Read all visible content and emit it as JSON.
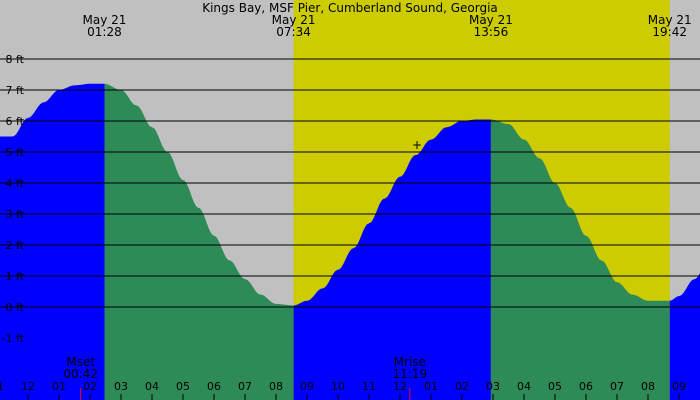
{
  "chart_data": {
    "type": "area",
    "title": "Kings Bay, MSF Pier, Cumberland Sound, Georgia",
    "xlabel": "",
    "ylabel": "",
    "y_unit": "ft",
    "ylim": [
      -1.7,
      9.0
    ],
    "y_ticks": [
      {
        "value": 8,
        "label": "8 ft"
      },
      {
        "value": 7,
        "label": "7 ft"
      },
      {
        "value": 6,
        "label": "6 ft"
      },
      {
        "value": 5,
        "label": "5 ft"
      },
      {
        "value": 4,
        "label": "4 ft"
      },
      {
        "value": 3,
        "label": "3 ft"
      },
      {
        "value": 2,
        "label": "2 ft"
      },
      {
        "value": 1,
        "label": "1 ft"
      },
      {
        "value": 0,
        "label": "0 ft"
      },
      {
        "value": -1,
        "label": "-1 ft"
      }
    ],
    "x_range_hours": [
      -1.45,
      21.15
    ],
    "grid": true,
    "daylight": {
      "sunrise": "07:34",
      "sunset": "19:42"
    },
    "extremes": [
      {
        "kind": "high",
        "date": "May 21",
        "time": "01:28",
        "height": 7.2
      },
      {
        "kind": "low",
        "date": "May 21",
        "time": "07:34",
        "height": 0.05
      },
      {
        "kind": "high",
        "date": "May 21",
        "time": "13:56",
        "height": 6.05
      },
      {
        "kind": "low",
        "date": "May 21",
        "time": "19:42",
        "height": 0.2
      }
    ],
    "top_labels": [
      {
        "date": "May 21",
        "time": "01:28"
      },
      {
        "date": "May 21",
        "time": "07:34"
      },
      {
        "date": "May 21",
        "time": "13:56"
      },
      {
        "date": "May 21",
        "time": "19:42"
      }
    ],
    "series": [
      {
        "x": [
          "-01:30",
          "-01:00",
          "-00:30",
          "00:00",
          "00:30",
          "01:00",
          "01:28",
          "02:00",
          "02:30",
          "03:00",
          "03:30",
          "04:00",
          "04:30",
          "05:00",
          "05:30",
          "06:00",
          "06:30",
          "07:00",
          "07:34",
          "08:00",
          "08:30",
          "09:00",
          "09:30",
          "10:00",
          "10:30",
          "11:00",
          "11:30",
          "12:00",
          "12:30",
          "13:00",
          "13:30",
          "13:56",
          "14:30",
          "15:00",
          "15:30",
          "16:00",
          "16:30",
          "17:00",
          "17:30",
          "18:00",
          "18:30",
          "19:00",
          "19:42",
          "20:00",
          "20:30",
          "21:00"
        ],
        "values": [
          5.5,
          6.1,
          6.6,
          7.0,
          7.15,
          7.2,
          7.2,
          7.0,
          6.5,
          5.8,
          5.0,
          4.1,
          3.2,
          2.3,
          1.5,
          0.9,
          0.4,
          0.1,
          0.05,
          0.2,
          0.6,
          1.2,
          1.9,
          2.7,
          3.5,
          4.2,
          4.9,
          5.4,
          5.8,
          6.0,
          6.05,
          6.05,
          5.9,
          5.4,
          4.8,
          4.0,
          3.2,
          2.3,
          1.5,
          0.8,
          0.4,
          0.2,
          0.2,
          0.35,
          0.9,
          1.6
        ]
      }
    ],
    "moon_events": [
      {
        "label": "Mset",
        "time": "00:42"
      },
      {
        "label": "Mrise",
        "time": "11:19"
      }
    ],
    "x_ticks": [
      "11",
      "12",
      "01",
      "02",
      "03",
      "04",
      "05",
      "06",
      "07",
      "08",
      "09",
      "10",
      "11",
      "12",
      "01",
      "02",
      "03",
      "04",
      "05",
      "06",
      "07",
      "08",
      "09"
    ],
    "colors": {
      "night": "#c0c0c0",
      "day": "#cccc00",
      "rising": "#0000ff",
      "falling": "#2e8b57",
      "grid": "#000000",
      "text": "#000000",
      "moon_tick": "#ff0000"
    }
  }
}
